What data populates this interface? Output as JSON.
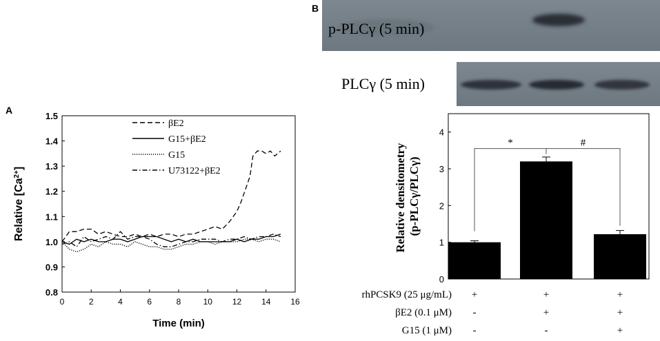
{
  "panel_a": {
    "label": "A",
    "legend": [
      "βE2",
      "G15+βE2",
      "G15",
      "U73122+βE2"
    ]
  },
  "panel_b": {
    "label": "B",
    "blot_labels": [
      "p-PLCγ (5 min)",
      "PLCγ (5 min)"
    ],
    "significance": [
      "*",
      "#"
    ],
    "treatments": [
      {
        "label": "rhPCSK9 (25 μg/mL)",
        "values": [
          "+",
          "+",
          "+"
        ]
      },
      {
        "label": "βE2 (0.1 μM)",
        "values": [
          "-",
          "+",
          "+"
        ]
      },
      {
        "label": "G15 (1 μM)",
        "values": [
          "-",
          "-",
          "+"
        ]
      }
    ]
  },
  "chart_data": [
    {
      "type": "line",
      "title": "",
      "xlabel": "Time (min)",
      "ylabel": "Relative [Ca2+]",
      "xlim": [
        0,
        16
      ],
      "ylim": [
        0.8,
        1.5
      ],
      "xticks": [
        "0",
        "2",
        "4",
        "6",
        "8",
        "10",
        "12",
        "14",
        "16"
      ],
      "yticks": [
        "0.8",
        "0.9",
        "1.0",
        "1.1",
        "1.2",
        "1.3",
        "1.4",
        "1.5"
      ],
      "legend_position": "top-center",
      "series": [
        {
          "name": "βE2",
          "style": "dashed",
          "x": [
            0,
            0.5,
            1,
            1.5,
            2,
            2.5,
            3,
            3.5,
            4,
            4.5,
            5,
            5.5,
            6,
            6.5,
            7,
            7.5,
            8,
            8.5,
            9,
            9.5,
            10,
            10.5,
            11,
            11.5,
            12,
            12.3,
            12.6,
            12.9,
            13.1,
            13.4,
            13.7,
            14,
            14.3,
            14.6,
            15
          ],
          "y": [
            1.0,
            1.04,
            1.04,
            1.05,
            1.05,
            1.03,
            1.04,
            1.03,
            1.02,
            1.02,
            1.03,
            1.02,
            1.03,
            1.02,
            1.03,
            1.03,
            1.02,
            1.03,
            1.03,
            1.04,
            1.05,
            1.06,
            1.05,
            1.08,
            1.12,
            1.16,
            1.21,
            1.26,
            1.34,
            1.36,
            1.36,
            1.35,
            1.36,
            1.34,
            1.36
          ]
        },
        {
          "name": "G15+βE2",
          "style": "solid",
          "x": [
            0,
            0.5,
            1,
            1.5,
            2,
            2.5,
            3,
            3.5,
            4,
            4.5,
            5,
            5.5,
            6,
            6.5,
            7,
            7.5,
            8,
            8.5,
            9,
            9.5,
            10,
            10.5,
            11,
            11.5,
            12,
            12.5,
            13,
            13.5,
            14,
            14.5,
            15
          ],
          "y": [
            1.0,
            0.99,
            1.01,
            1.0,
            1.01,
            1.0,
            1.0,
            1.01,
            1.01,
            1.0,
            1.01,
            1.02,
            1.02,
            1.02,
            1.01,
            1.0,
            1.01,
            1.0,
            1.01,
            1.0,
            1.0,
            1.0,
            1.0,
            1.0,
            1.01,
            1.0,
            1.01,
            1.01,
            1.02,
            1.02,
            1.03
          ]
        },
        {
          "name": "G15",
          "style": "dotted",
          "x": [
            0,
            0.5,
            1,
            1.5,
            2,
            2.5,
            3,
            3.5,
            4,
            4.5,
            5,
            5.5,
            6,
            6.5,
            7,
            7.5,
            8,
            8.5,
            9,
            9.5,
            10,
            10.5,
            11,
            11.5,
            12,
            12.5,
            13,
            13.5,
            14,
            14.5,
            15
          ],
          "y": [
            1.0,
            0.97,
            0.96,
            0.97,
            0.99,
            0.98,
            1.0,
            0.99,
            0.99,
            0.98,
            1.0,
            0.99,
            0.98,
            0.98,
            0.97,
            0.97,
            0.98,
            0.99,
            0.99,
            1.0,
            1.0,
            0.99,
            1.0,
            1.0,
            1.0,
            1.01,
            1.01,
            1.0,
            1.01,
            1.01,
            1.0
          ]
        },
        {
          "name": "U73122+βE2",
          "style": "dashdot",
          "x": [
            0,
            0.5,
            1,
            1.5,
            2,
            2.5,
            3,
            3.5,
            4,
            4.5,
            5,
            5.5,
            6,
            6.5,
            7,
            7.5,
            8,
            8.5,
            9,
            9.5,
            10,
            10.5,
            11,
            11.5,
            12,
            12.5,
            13,
            13.5,
            14,
            14.5,
            15
          ],
          "y": [
            0.99,
            1.0,
            0.98,
            1.02,
            1.0,
            1.01,
            1.02,
            1.01,
            1.04,
            1.01,
            1.02,
            1.02,
            1.01,
            0.99,
            0.98,
            0.98,
            0.99,
            1.0,
            1.0,
            1.01,
            1.01,
            1.01,
            1.0,
            1.01,
            1.01,
            1.02,
            1.01,
            1.02,
            1.02,
            1.03,
            1.02
          ]
        }
      ]
    },
    {
      "type": "bar",
      "title": "",
      "xlabel": "",
      "ylabel": "Relative densitometry (p-PLCγ/PLCγ)",
      "ylim": [
        0,
        4.5
      ],
      "yticks": [
        "0",
        "1",
        "2",
        "3",
        "4"
      ],
      "categories": [
        "rhPCSK9",
        "rhPCSK9+βE2",
        "rhPCSK9+βE2+G15"
      ],
      "values": [
        1.0,
        3.2,
        1.22
      ],
      "errors": [
        0.04,
        0.12,
        0.1
      ],
      "color": "#000000"
    }
  ]
}
